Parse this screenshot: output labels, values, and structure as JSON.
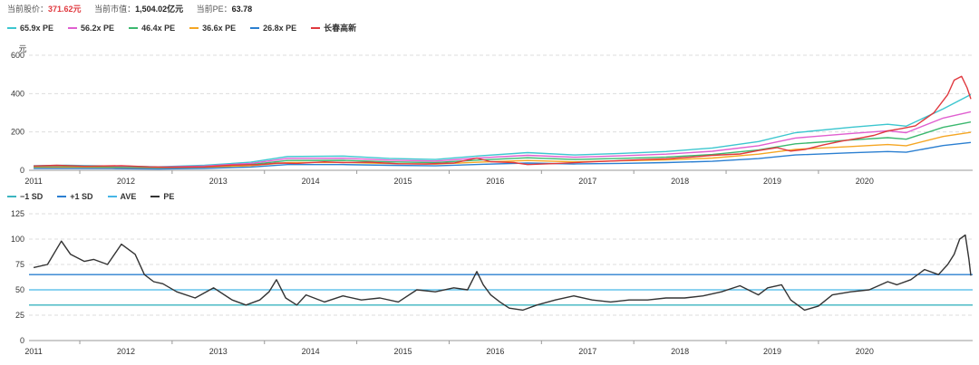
{
  "stats": {
    "price_label": "当前股价：",
    "price_value": "371.62元",
    "cap_label": "当前市值：",
    "cap_value": "1,504.02亿元",
    "pe_label": "当前PE：",
    "pe_value": "63.78"
  },
  "colors": {
    "price": "#e0383e",
    "grid": "#dddddd",
    "axis": "#999999",
    "text": "#333333"
  },
  "chart_data": [
    {
      "type": "line",
      "ylabel": "元",
      "ylim": [
        0,
        600
      ],
      "yticks": [
        0,
        200,
        400,
        600
      ],
      "xlim": [
        2010.6,
        2020.82
      ],
      "xticks": [
        "2011",
        "2012",
        "2013",
        "2014",
        "2015",
        "2016",
        "2017",
        "2018",
        "2019",
        "2020"
      ],
      "grid": true,
      "legend": "top-left",
      "series": [
        {
          "name": "65.9x PE",
          "color": "#3cc6cf",
          "x": [
            2010.65,
            2011.0,
            2011.5,
            2012.0,
            2012.5,
            2013.0,
            2013.4,
            2014.0,
            2014.5,
            2015.0,
            2015.5,
            2016.0,
            2016.5,
            2017.0,
            2017.5,
            2018.0,
            2018.5,
            2018.9,
            2019.5,
            2019.9,
            2020.1,
            2020.5,
            2020.8
          ],
          "y": [
            24,
            26,
            22,
            18,
            26,
            42,
            72,
            74,
            62,
            56,
            76,
            92,
            80,
            88,
            98,
            116,
            150,
            196,
            224,
            240,
            230,
            320,
            395
          ]
        },
        {
          "name": "56.2x PE",
          "color": "#e05fd0",
          "x": [
            2010.65,
            2011.0,
            2011.5,
            2012.0,
            2012.5,
            2013.0,
            2013.4,
            2014.0,
            2014.5,
            2015.0,
            2015.5,
            2016.0,
            2016.5,
            2017.0,
            2017.5,
            2018.0,
            2018.5,
            2018.9,
            2019.5,
            2019.9,
            2020.1,
            2020.5,
            2020.8
          ],
          "y": [
            20,
            22,
            19,
            16,
            22,
            36,
            62,
            63,
            53,
            48,
            65,
            78,
            68,
            75,
            84,
            99,
            128,
            168,
            192,
            206,
            196,
            272,
            305
          ]
        },
        {
          "name": "46.4x PE",
          "color": "#3bb86f",
          "x": [
            2010.65,
            2011.0,
            2011.5,
            2012.0,
            2012.5,
            2013.0,
            2013.4,
            2014.0,
            2014.5,
            2015.0,
            2015.5,
            2016.0,
            2016.5,
            2017.0,
            2017.5,
            2018.0,
            2018.5,
            2018.9,
            2019.5,
            2019.9,
            2020.1,
            2020.5,
            2020.8
          ],
          "y": [
            17,
            18,
            16,
            13,
            18,
            30,
            51,
            52,
            44,
            40,
            54,
            65,
            56,
            62,
            69,
            82,
            106,
            138,
            158,
            170,
            162,
            224,
            252
          ]
        },
        {
          "name": "36.6x PE",
          "color": "#f5a623",
          "x": [
            2010.65,
            2011.0,
            2011.5,
            2012.0,
            2012.5,
            2013.0,
            2013.4,
            2014.0,
            2014.5,
            2015.0,
            2015.5,
            2016.0,
            2016.5,
            2017.0,
            2017.5,
            2018.0,
            2018.5,
            2018.9,
            2019.5,
            2019.9,
            2020.1,
            2020.5,
            2020.8
          ],
          "y": [
            13,
            14,
            12,
            10,
            14,
            24,
            40,
            41,
            35,
            32,
            43,
            51,
            44,
            49,
            54,
            64,
            84,
            109,
            124,
            134,
            128,
            176,
            198
          ]
        },
        {
          "name": "26.8x PE",
          "color": "#2b7fd1",
          "x": [
            2010.65,
            2011.0,
            2011.5,
            2012.0,
            2012.5,
            2013.0,
            2013.4,
            2014.0,
            2014.5,
            2015.0,
            2015.5,
            2016.0,
            2016.5,
            2017.0,
            2017.5,
            2018.0,
            2018.5,
            2018.9,
            2019.5,
            2019.9,
            2020.1,
            2020.5,
            2020.8
          ],
          "y": [
            10,
            10,
            9,
            7,
            10,
            17,
            30,
            30,
            26,
            23,
            31,
            38,
            33,
            36,
            40,
            47,
            61,
            80,
            91,
            98,
            94,
            129,
            145
          ]
        },
        {
          "name": "长春高新",
          "color": "#e0383e",
          "x": [
            2010.65,
            2010.9,
            2011.2,
            2011.6,
            2011.9,
            2012.1,
            2012.5,
            2012.8,
            2013.1,
            2013.3,
            2013.5,
            2013.8,
            2014.0,
            2014.3,
            2014.6,
            2014.9,
            2015.2,
            2015.45,
            2015.6,
            2015.85,
            2016.0,
            2016.3,
            2016.6,
            2016.9,
            2017.2,
            2017.5,
            2017.8,
            2018.0,
            2018.3,
            2018.5,
            2018.7,
            2018.85,
            2019.0,
            2019.2,
            2019.4,
            2019.6,
            2019.75,
            2019.9,
            2020.05,
            2020.2,
            2020.4,
            2020.55,
            2020.62,
            2020.7,
            2020.76,
            2020.8
          ],
          "y": [
            22,
            26,
            21,
            24,
            18,
            16,
            18,
            27,
            30,
            38,
            36,
            44,
            40,
            42,
            34,
            33,
            38,
            64,
            45,
            40,
            30,
            35,
            42,
            48,
            55,
            60,
            70,
            78,
            85,
            103,
            118,
            100,
            108,
            132,
            152,
            168,
            182,
            205,
            218,
            232,
            300,
            395,
            470,
            490,
            430,
            372
          ]
        }
      ]
    },
    {
      "type": "line",
      "ylim": [
        0,
        125
      ],
      "yticks": [
        0,
        25,
        50,
        75,
        100,
        125
      ],
      "xlim": [
        2010.6,
        2020.82
      ],
      "xticks": [
        "2011",
        "2012",
        "2013",
        "2014",
        "2015",
        "2016",
        "2017",
        "2018",
        "2019",
        "2020"
      ],
      "grid": true,
      "legend": "top-left",
      "series": [
        {
          "name": "−1 SD",
          "color": "#3cb5c0",
          "value": 35
        },
        {
          "name": "+1 SD",
          "color": "#2b7fd1",
          "value": 65
        },
        {
          "name": "AVE",
          "color": "#46b6e6",
          "value": 50
        },
        {
          "name": "PE",
          "color": "#333333",
          "x": [
            2010.65,
            2010.8,
            2010.95,
            2011.05,
            2011.2,
            2011.3,
            2011.45,
            2011.6,
            2011.75,
            2011.85,
            2011.95,
            2012.05,
            2012.2,
            2012.4,
            2012.6,
            2012.8,
            2012.95,
            2013.1,
            2013.2,
            2013.28,
            2013.38,
            2013.5,
            2013.6,
            2013.8,
            2014.0,
            2014.2,
            2014.4,
            2014.6,
            2014.8,
            2015.0,
            2015.2,
            2015.35,
            2015.45,
            2015.52,
            2015.6,
            2015.7,
            2015.8,
            2015.95,
            2016.1,
            2016.3,
            2016.5,
            2016.7,
            2016.9,
            2017.1,
            2017.3,
            2017.5,
            2017.7,
            2017.9,
            2018.1,
            2018.3,
            2018.5,
            2018.6,
            2018.75,
            2018.85,
            2019.0,
            2019.15,
            2019.3,
            2019.5,
            2019.7,
            2019.9,
            2020.0,
            2020.15,
            2020.3,
            2020.45,
            2020.55,
            2020.62,
            2020.68,
            2020.74,
            2020.78,
            2020.8
          ],
          "y": [
            72,
            75,
            98,
            85,
            78,
            80,
            75,
            95,
            85,
            65,
            58,
            56,
            48,
            42,
            52,
            40,
            35,
            40,
            48,
            60,
            42,
            35,
            45,
            38,
            44,
            40,
            42,
            38,
            50,
            48,
            52,
            50,
            68,
            55,
            45,
            38,
            32,
            30,
            35,
            40,
            44,
            40,
            38,
            40,
            40,
            42,
            42,
            44,
            48,
            54,
            45,
            52,
            55,
            40,
            30,
            34,
            45,
            48,
            50,
            58,
            55,
            60,
            70,
            65,
            75,
            85,
            100,
            104,
            80,
            64
          ]
        }
      ]
    }
  ]
}
